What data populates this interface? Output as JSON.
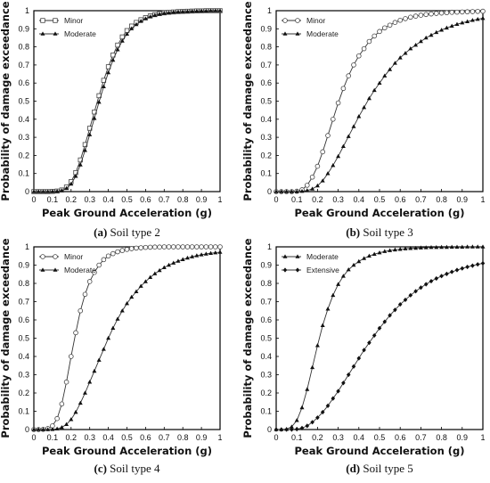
{
  "chart_data": [
    {
      "type": "line",
      "panel_letter": "(a)",
      "caption_text": " Soil type 2",
      "xlabel": "Peak Ground Acceleration (g)",
      "ylabel": "Probability of damage exceedance",
      "xlim": [
        0,
        1
      ],
      "ylim": [
        0,
        1
      ],
      "xticks": [
        "0",
        "0.1",
        "0.2",
        "0.3",
        "0.4",
        "0.5",
        "0.6",
        "0.7",
        "0.8",
        "0.9",
        "1"
      ],
      "yticks": [
        "0",
        "0.1",
        "0.2",
        "0.3",
        "0.4",
        "0.5",
        "0.6",
        "0.7",
        "0.8",
        "0.9",
        "1"
      ],
      "legend_position": "top-left",
      "x": [
        0,
        0.025,
        0.05,
        0.075,
        0.1,
        0.125,
        0.15,
        0.175,
        0.2,
        0.225,
        0.25,
        0.275,
        0.3,
        0.325,
        0.35,
        0.375,
        0.4,
        0.425,
        0.45,
        0.475,
        0.5,
        0.525,
        0.55,
        0.575,
        0.6,
        0.625,
        0.65,
        0.675,
        0.7,
        0.725,
        0.75,
        0.775,
        0.8,
        0.825,
        0.85,
        0.875,
        0.9,
        0.925,
        0.95,
        0.975,
        1
      ],
      "series": [
        {
          "name": "Minor",
          "marker": "square-open",
          "values": [
            0,
            0,
            0,
            0,
            0.001,
            0.003,
            0.009,
            0.025,
            0.055,
            0.105,
            0.175,
            0.26,
            0.35,
            0.44,
            0.53,
            0.615,
            0.69,
            0.755,
            0.81,
            0.855,
            0.89,
            0.915,
            0.935,
            0.95,
            0.962,
            0.971,
            0.978,
            0.984,
            0.988,
            0.991,
            0.993,
            0.995,
            0.996,
            0.997,
            0.998,
            0.999,
            0.999,
            1,
            1,
            1,
            1
          ]
        },
        {
          "name": "Moderate",
          "marker": "triangle-filled",
          "values": [
            0,
            0,
            0,
            0,
            0.001,
            0.002,
            0.006,
            0.018,
            0.042,
            0.085,
            0.148,
            0.228,
            0.315,
            0.405,
            0.495,
            0.58,
            0.658,
            0.727,
            0.785,
            0.833,
            0.871,
            0.901,
            0.924,
            0.942,
            0.956,
            0.967,
            0.975,
            0.981,
            0.986,
            0.989,
            0.992,
            0.994,
            0.995,
            0.996,
            0.997,
            0.998,
            0.999,
            0.999,
            1,
            1,
            1
          ]
        }
      ]
    },
    {
      "type": "line",
      "panel_letter": "(b)",
      "caption_text": " Soil type 3",
      "xlabel": "Peak Ground Acceleration (g)",
      "ylabel": "Probability of damage exceedance",
      "xlim": [
        0,
        1
      ],
      "ylim": [
        0,
        1
      ],
      "xticks": [
        "0",
        "0.1",
        "0.2",
        "0.3",
        "0.4",
        "0.5",
        "0.6",
        "0.7",
        "0.8",
        "0.9",
        "1"
      ],
      "yticks": [
        "0",
        "0.1",
        "0.2",
        "0.3",
        "0.4",
        "0.5",
        "0.6",
        "0.7",
        "0.8",
        "0.9",
        "1"
      ],
      "legend_position": "top-left",
      "x": [
        0,
        0.025,
        0.05,
        0.075,
        0.1,
        0.125,
        0.15,
        0.175,
        0.2,
        0.225,
        0.25,
        0.275,
        0.3,
        0.325,
        0.35,
        0.375,
        0.4,
        0.425,
        0.45,
        0.475,
        0.5,
        0.525,
        0.55,
        0.575,
        0.6,
        0.625,
        0.65,
        0.675,
        0.7,
        0.725,
        0.75,
        0.775,
        0.8,
        0.825,
        0.85,
        0.875,
        0.9,
        0.925,
        0.95,
        0.975,
        1
      ],
      "series": [
        {
          "name": "Minor",
          "marker": "circle-open",
          "values": [
            0,
            0,
            0,
            0,
            0.002,
            0.01,
            0.035,
            0.08,
            0.14,
            0.22,
            0.31,
            0.4,
            0.49,
            0.57,
            0.64,
            0.7,
            0.75,
            0.79,
            0.83,
            0.86,
            0.885,
            0.905,
            0.92,
            0.935,
            0.947,
            0.956,
            0.964,
            0.97,
            0.975,
            0.979,
            0.982,
            0.985,
            0.987,
            0.989,
            0.991,
            0.992,
            0.993,
            0.994,
            0.995,
            0.996,
            0.997
          ]
        },
        {
          "name": "Moderate",
          "marker": "triangle-filled",
          "values": [
            0,
            0,
            0,
            0,
            0,
            0.002,
            0.006,
            0.015,
            0.032,
            0.06,
            0.1,
            0.145,
            0.195,
            0.25,
            0.305,
            0.36,
            0.415,
            0.465,
            0.515,
            0.56,
            0.6,
            0.64,
            0.675,
            0.71,
            0.74,
            0.765,
            0.79,
            0.81,
            0.83,
            0.85,
            0.865,
            0.88,
            0.893,
            0.905,
            0.915,
            0.925,
            0.933,
            0.94,
            0.947,
            0.953,
            0.958
          ]
        }
      ]
    },
    {
      "type": "line",
      "panel_letter": "(c)",
      "caption_text": " Soil type 4",
      "xlabel": "Peak Ground Acceleration (g)",
      "ylabel": "Probability of damage exceedance",
      "xlim": [
        0,
        1
      ],
      "ylim": [
        0,
        1
      ],
      "xticks": [
        "0",
        "0.1",
        "0.2",
        "0.3",
        "0.4",
        "0.5",
        "0.6",
        "0.7",
        "0.8",
        "0.9",
        "1"
      ],
      "yticks": [
        "0",
        "0.1",
        "0.2",
        "0.3",
        "0.4",
        "0.5",
        "0.6",
        "0.7",
        "0.8",
        "0.9",
        "1"
      ],
      "legend_position": "top-left",
      "x": [
        0,
        0.025,
        0.05,
        0.075,
        0.1,
        0.125,
        0.15,
        0.175,
        0.2,
        0.225,
        0.25,
        0.275,
        0.3,
        0.325,
        0.35,
        0.375,
        0.4,
        0.425,
        0.45,
        0.475,
        0.5,
        0.525,
        0.55,
        0.575,
        0.6,
        0.625,
        0.65,
        0.675,
        0.7,
        0.725,
        0.75,
        0.775,
        0.8,
        0.825,
        0.85,
        0.875,
        0.9,
        0.925,
        0.95,
        0.975,
        1
      ],
      "series": [
        {
          "name": "Minor",
          "marker": "circle-open",
          "values": [
            0,
            0,
            0.001,
            0.005,
            0.02,
            0.06,
            0.14,
            0.26,
            0.4,
            0.53,
            0.65,
            0.74,
            0.81,
            0.86,
            0.9,
            0.93,
            0.95,
            0.963,
            0.973,
            0.98,
            0.986,
            0.99,
            0.993,
            0.995,
            0.997,
            0.998,
            0.999,
            0.999,
            1,
            1,
            1,
            1,
            1,
            1,
            1,
            1,
            1,
            1,
            1,
            1,
            1
          ]
        },
        {
          "name": "Moderate",
          "marker": "triangle-filled",
          "values": [
            0,
            0,
            0,
            0,
            0.001,
            0.004,
            0.012,
            0.028,
            0.055,
            0.095,
            0.145,
            0.2,
            0.26,
            0.32,
            0.38,
            0.44,
            0.5,
            0.555,
            0.605,
            0.65,
            0.69,
            0.725,
            0.755,
            0.785,
            0.81,
            0.833,
            0.853,
            0.871,
            0.887,
            0.9,
            0.912,
            0.922,
            0.931,
            0.939,
            0.946,
            0.952,
            0.957,
            0.961,
            0.965,
            0.968,
            0.971
          ]
        }
      ]
    },
    {
      "type": "line",
      "panel_letter": "(d)",
      "caption_text": " Soil type 5",
      "xlabel": "Peak Ground Acceleration (g)",
      "ylabel": "Probability of damage exceedance",
      "xlim": [
        0,
        1
      ],
      "ylim": [
        0,
        1
      ],
      "xticks": [
        "0",
        "0.1",
        "0.2",
        "0.3",
        "0.4",
        "0.5",
        "0.6",
        "0.7",
        "0.8",
        "0.9",
        "1"
      ],
      "yticks": [
        "0",
        "0.1",
        "0.2",
        "0.3",
        "0.4",
        "0.5",
        "0.6",
        "0.7",
        "0.8",
        "0.9",
        "1"
      ],
      "legend_position": "top-left",
      "x": [
        0,
        0.025,
        0.05,
        0.075,
        0.1,
        0.125,
        0.15,
        0.175,
        0.2,
        0.225,
        0.25,
        0.275,
        0.3,
        0.325,
        0.35,
        0.375,
        0.4,
        0.425,
        0.45,
        0.475,
        0.5,
        0.525,
        0.55,
        0.575,
        0.6,
        0.625,
        0.65,
        0.675,
        0.7,
        0.725,
        0.75,
        0.775,
        0.8,
        0.825,
        0.85,
        0.875,
        0.9,
        0.925,
        0.95,
        0.975,
        1
      ],
      "series": [
        {
          "name": "Moderate",
          "marker": "triangle-filled",
          "values": [
            0,
            0,
            0.002,
            0.015,
            0.05,
            0.12,
            0.22,
            0.34,
            0.46,
            0.57,
            0.66,
            0.735,
            0.795,
            0.84,
            0.875,
            0.9,
            0.92,
            0.937,
            0.95,
            0.96,
            0.968,
            0.975,
            0.98,
            0.984,
            0.987,
            0.99,
            0.992,
            0.993,
            0.995,
            0.996,
            0.997,
            0.997,
            0.998,
            0.998,
            0.999,
            0.999,
            0.999,
            1,
            1,
            1,
            1
          ]
        },
        {
          "name": "Extensive",
          "marker": "diamond-filled",
          "values": [
            0,
            0,
            0,
            0,
            0.002,
            0.008,
            0.02,
            0.04,
            0.065,
            0.095,
            0.13,
            0.17,
            0.21,
            0.255,
            0.3,
            0.345,
            0.39,
            0.435,
            0.475,
            0.515,
            0.555,
            0.59,
            0.625,
            0.655,
            0.685,
            0.71,
            0.735,
            0.757,
            0.777,
            0.795,
            0.812,
            0.827,
            0.84,
            0.852,
            0.863,
            0.873,
            0.882,
            0.89,
            0.897,
            0.904,
            0.91
          ]
        }
      ]
    }
  ]
}
